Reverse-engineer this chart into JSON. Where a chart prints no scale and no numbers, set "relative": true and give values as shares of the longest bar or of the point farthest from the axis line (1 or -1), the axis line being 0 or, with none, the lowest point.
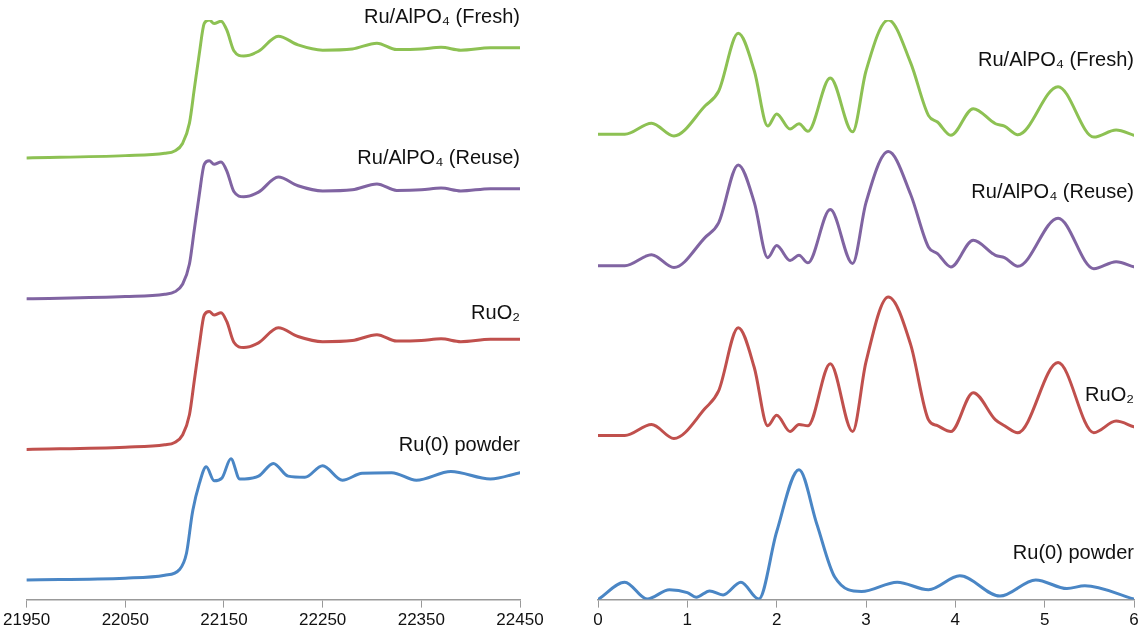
{
  "chart_data": [
    {
      "type": "line",
      "relative": true,
      "xlim": [
        21950,
        22450
      ],
      "xticks": [
        21950,
        22050,
        22150,
        22250,
        22350,
        22450
      ],
      "grid": false,
      "legend": false,
      "marker": "none",
      "series": [
        {
          "name": "Ru/AlPO₄ (Fresh)",
          "color": "#8dc153",
          "x": [
            21950,
            22050,
            22090,
            22100,
            22108,
            22115,
            22120,
            22125,
            22130,
            22135,
            22140,
            22147,
            22153,
            22160,
            22170,
            22185,
            22205,
            22225,
            22250,
            22280,
            22305,
            22325,
            22350,
            22370,
            22390,
            22420,
            22450
          ],
          "values": [
            0.762,
            0.766,
            0.77,
            0.774,
            0.787,
            0.822,
            0.882,
            0.942,
            0.994,
            1.0,
            0.994,
            0.998,
            0.982,
            0.947,
            0.938,
            0.946,
            0.972,
            0.957,
            0.948,
            0.95,
            0.96,
            0.949,
            0.95,
            0.953,
            0.948,
            0.952,
            0.952
          ]
        },
        {
          "name": "Ru/AlPO₄ (Reuse)",
          "color": "#8064a2",
          "x": [
            21950,
            22050,
            22090,
            22100,
            22108,
            22115,
            22120,
            22125,
            22130,
            22135,
            22140,
            22147,
            22153,
            22160,
            22170,
            22185,
            22205,
            22225,
            22250,
            22280,
            22305,
            22325,
            22350,
            22370,
            22390,
            22420,
            22450
          ],
          "values": [
            0.519,
            0.523,
            0.527,
            0.531,
            0.544,
            0.579,
            0.639,
            0.699,
            0.751,
            0.757,
            0.751,
            0.755,
            0.739,
            0.704,
            0.695,
            0.703,
            0.729,
            0.714,
            0.705,
            0.707,
            0.717,
            0.706,
            0.707,
            0.71,
            0.705,
            0.709,
            0.709
          ]
        },
        {
          "name": "RuO₂",
          "color": "#c0504d",
          "x": [
            21950,
            22050,
            22090,
            22100,
            22108,
            22115,
            22120,
            22125,
            22130,
            22135,
            22140,
            22147,
            22153,
            22160,
            22170,
            22185,
            22205,
            22225,
            22250,
            22280,
            22305,
            22325,
            22350,
            22370,
            22390,
            22420,
            22450
          ],
          "values": [
            0.259,
            0.263,
            0.267,
            0.271,
            0.284,
            0.319,
            0.379,
            0.439,
            0.491,
            0.497,
            0.491,
            0.495,
            0.479,
            0.444,
            0.435,
            0.443,
            0.469,
            0.454,
            0.445,
            0.447,
            0.457,
            0.446,
            0.447,
            0.45,
            0.445,
            0.449,
            0.449
          ]
        },
        {
          "name": "Ru(0) powder",
          "color": "#4a86c5",
          "x": [
            21950,
            22050,
            22090,
            22105,
            22112,
            22118,
            22125,
            22132,
            22140,
            22148,
            22157,
            22166,
            22185,
            22200,
            22215,
            22232,
            22250,
            22270,
            22290,
            22320,
            22345,
            22380,
            22420,
            22450
          ],
          "values": [
            0.034,
            0.037,
            0.042,
            0.052,
            0.08,
            0.15,
            0.2,
            0.229,
            0.205,
            0.21,
            0.243,
            0.208,
            0.213,
            0.235,
            0.213,
            0.211,
            0.231,
            0.206,
            0.218,
            0.219,
            0.206,
            0.221,
            0.208,
            0.219
          ]
        }
      ]
    },
    {
      "type": "line",
      "relative": true,
      "xlim": [
        0,
        6
      ],
      "xticks": [
        0,
        1,
        2,
        3,
        4,
        5,
        6
      ],
      "grid": false,
      "legend": false,
      "marker": "none",
      "series": [
        {
          "name": "Ru/AlPO₄ (Fresh)",
          "color": "#8dc153",
          "x": [
            0,
            0.3,
            0.6,
            0.85,
            1.2,
            1.35,
            1.57,
            1.75,
            1.9,
            2.0,
            2.15,
            2.25,
            2.35,
            2.6,
            2.85,
            3.0,
            3.25,
            3.5,
            3.7,
            3.8,
            3.95,
            4.2,
            4.45,
            4.55,
            4.7,
            5.15,
            5.55,
            5.8,
            6
          ],
          "values": [
            0.803,
            0.803,
            0.822,
            0.8,
            0.852,
            0.877,
            0.977,
            0.912,
            0.817,
            0.838,
            0.812,
            0.821,
            0.808,
            0.9,
            0.807,
            0.912,
            1.0,
            0.926,
            0.835,
            0.824,
            0.801,
            0.847,
            0.821,
            0.817,
            0.802,
            0.885,
            0.798,
            0.81,
            0.801
          ]
        },
        {
          "name": "Ru/AlPO₄ (Reuse)",
          "color": "#8064a2",
          "x": [
            0,
            0.3,
            0.6,
            0.85,
            1.2,
            1.35,
            1.57,
            1.75,
            1.9,
            2.0,
            2.15,
            2.25,
            2.35,
            2.6,
            2.85,
            3.0,
            3.25,
            3.5,
            3.7,
            3.8,
            3.95,
            4.2,
            4.45,
            4.55,
            4.7,
            5.15,
            5.55,
            5.8,
            6
          ],
          "values": [
            0.576,
            0.576,
            0.595,
            0.573,
            0.625,
            0.65,
            0.75,
            0.685,
            0.59,
            0.611,
            0.585,
            0.594,
            0.581,
            0.673,
            0.58,
            0.685,
            0.773,
            0.699,
            0.608,
            0.597,
            0.574,
            0.62,
            0.594,
            0.59,
            0.575,
            0.658,
            0.571,
            0.583,
            0.574
          ]
        },
        {
          "name": "RuO₂",
          "color": "#c0504d",
          "x": [
            0,
            0.3,
            0.6,
            0.85,
            1.2,
            1.35,
            1.57,
            1.75,
            1.9,
            2.0,
            2.15,
            2.25,
            2.35,
            2.6,
            2.85,
            3.0,
            3.25,
            3.5,
            3.7,
            3.8,
            3.95,
            4.2,
            4.45,
            4.55,
            4.7,
            5.15,
            5.55,
            5.8,
            6
          ],
          "values": [
            0.283,
            0.283,
            0.302,
            0.278,
            0.33,
            0.36,
            0.469,
            0.4,
            0.3,
            0.318,
            0.29,
            0.302,
            0.3,
            0.407,
            0.29,
            0.41,
            0.522,
            0.44,
            0.31,
            0.3,
            0.29,
            0.357,
            0.31,
            0.3,
            0.288,
            0.409,
            0.288,
            0.308,
            0.298
          ]
        },
        {
          "name": "Ru(0) powder",
          "color": "#4a86c5",
          "x": [
            0,
            0.3,
            0.55,
            0.8,
            1.0,
            1.1,
            1.25,
            1.4,
            1.6,
            1.8,
            2.0,
            2.25,
            2.45,
            2.65,
            2.95,
            3.35,
            3.7,
            4.05,
            4.5,
            4.9,
            5.25,
            5.45,
            6
          ],
          "values": [
            0,
            0.03,
            0.001,
            0.017,
            0.012,
            0.004,
            0.015,
            0.008,
            0.03,
            0.001,
            0.117,
            0.224,
            0.13,
            0.039,
            0.014,
            0.03,
            0.017,
            0.041,
            0.006,
            0.034,
            0.019,
            0.024,
            0.001
          ]
        }
      ]
    }
  ]
}
